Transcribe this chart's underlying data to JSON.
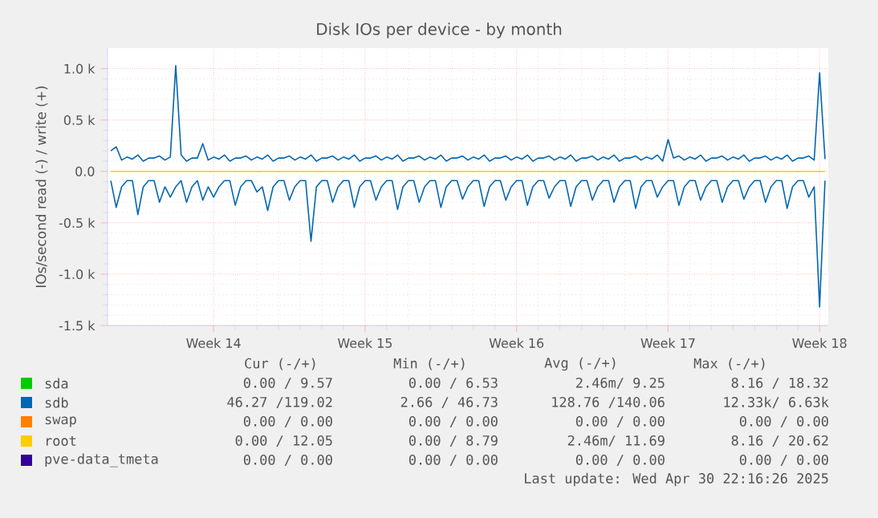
{
  "chart_data": {
    "type": "line",
    "title": "Disk IOs per device - by month",
    "ylabel": "IOs/second read (-) / write (+)",
    "categories": [
      null,
      null,
      null,
      null,
      null,
      null,
      null,
      null,
      null,
      null,
      null,
      null,
      null,
      null,
      null,
      null,
      null,
      null,
      null,
      "Week 14",
      null,
      null,
      null,
      null,
      null,
      null,
      null,
      null,
      null,
      null,
      null,
      null,
      null,
      null,
      null,
      null,
      null,
      null,
      null,
      null,
      null,
      null,
      null,
      null,
      null,
      null,
      null,
      "Week 15",
      null,
      null,
      null,
      null,
      null,
      null,
      null,
      null,
      null,
      null,
      null,
      null,
      null,
      null,
      null,
      null,
      null,
      null,
      null,
      null,
      null,
      null,
      null,
      null,
      null,
      null,
      null,
      "Week 16",
      null,
      null,
      null,
      null,
      null,
      null,
      null,
      null,
      null,
      null,
      null,
      null,
      null,
      null,
      null,
      null,
      null,
      null,
      null,
      null,
      null,
      null,
      null,
      null,
      null,
      null,
      null,
      "Week 17",
      null,
      null,
      null,
      null,
      null,
      null,
      null,
      null,
      null,
      null,
      null,
      null,
      null,
      null,
      null,
      null,
      null,
      null,
      null,
      null,
      null,
      null,
      null,
      null,
      null,
      null,
      null,
      "Week 18",
      null
    ],
    "ylim": [
      -1.5,
      1.2
    ],
    "yticks": [
      {
        "value": -1.5,
        "label": "-1.5 k"
      },
      {
        "value": -1.0,
        "label": "-1.0 k"
      },
      {
        "value": -0.5,
        "label": "-0.5 k"
      },
      {
        "value": 0.0,
        "label": "0.0"
      },
      {
        "value": 0.5,
        "label": "0.5 k"
      },
      {
        "value": 1.0,
        "label": "1.0 k"
      }
    ],
    "grid": true,
    "legend": "bottom",
    "series": [
      {
        "name": "sda",
        "color": "#00cc00",
        "values": [
          null,
          null,
          null,
          null,
          null,
          null,
          null,
          null,
          null,
          null,
          null,
          null,
          null,
          null,
          null,
          null,
          null,
          null,
          null,
          null,
          null,
          null,
          null,
          null,
          null,
          null,
          null,
          null,
          null,
          null,
          null,
          null,
          null,
          null,
          null,
          null,
          null,
          null,
          null,
          null,
          null,
          null,
          null,
          null,
          null,
          null,
          null,
          null,
          null,
          null,
          null,
          null,
          null,
          null,
          null,
          null,
          null,
          null,
          null,
          null,
          null,
          null,
          null,
          null,
          null,
          null,
          null,
          null,
          null,
          null,
          null,
          null,
          null,
          null,
          null,
          null,
          null,
          null,
          null,
          null,
          null,
          null,
          null,
          null,
          null,
          null,
          null,
          null,
          null,
          null,
          null,
          null,
          null,
          null,
          null,
          null,
          null,
          null,
          null,
          null,
          null,
          null,
          null,
          null,
          null,
          null,
          null,
          null,
          null,
          null,
          null,
          null,
          null,
          null,
          null,
          null,
          null,
          null,
          null,
          null,
          null,
          null,
          null,
          null,
          null,
          null,
          null,
          null,
          null,
          null,
          null,
          null,
          null
        ]
      },
      {
        "name": "sdb",
        "color": "#0066b3",
        "values": [
          0.2,
          0.24,
          0.11,
          0.14,
          0.12,
          0.16,
          0.1,
          0.13,
          0.13,
          0.15,
          0.11,
          0.14,
          1.03,
          0.16,
          0.1,
          0.13,
          0.13,
          0.27,
          0.11,
          0.14,
          0.12,
          0.16,
          0.1,
          0.13,
          0.13,
          0.15,
          0.11,
          0.14,
          0.12,
          0.16,
          0.1,
          0.13,
          0.13,
          0.15,
          0.11,
          0.14,
          0.12,
          0.16,
          0.1,
          0.13,
          0.13,
          0.15,
          0.11,
          0.14,
          0.12,
          0.16,
          0.1,
          0.13,
          0.13,
          0.15,
          0.11,
          0.14,
          0.12,
          0.16,
          0.1,
          0.13,
          0.13,
          0.15,
          0.11,
          0.14,
          0.12,
          0.16,
          0.1,
          0.13,
          0.13,
          0.15,
          0.11,
          0.14,
          0.12,
          0.16,
          0.1,
          0.13,
          0.13,
          0.15,
          0.11,
          0.14,
          0.12,
          0.16,
          0.1,
          0.13,
          0.13,
          0.15,
          0.11,
          0.14,
          0.12,
          0.16,
          0.1,
          0.13,
          0.13,
          0.15,
          0.11,
          0.14,
          0.12,
          0.16,
          0.1,
          0.13,
          0.13,
          0.15,
          0.11,
          0.14,
          0.12,
          0.16,
          0.1,
          0.31,
          0.13,
          0.15,
          0.11,
          0.14,
          0.12,
          0.16,
          0.1,
          0.13,
          0.13,
          0.15,
          0.11,
          0.14,
          0.12,
          0.16,
          0.1,
          0.13,
          0.13,
          0.15,
          0.11,
          0.14,
          0.12,
          0.16,
          0.1,
          0.13,
          0.13,
          0.15,
          0.11,
          0.96,
          0.12
        ]
      },
      {
        "color": "#0066b3",
        "values": [
          -0.09,
          -0.35,
          -0.15,
          -0.09,
          -0.09,
          -0.42,
          -0.15,
          -0.09,
          -0.09,
          -0.3,
          -0.15,
          -0.25,
          -0.15,
          -0.09,
          -0.3,
          -0.15,
          -0.09,
          -0.28,
          -0.15,
          -0.25,
          -0.15,
          -0.09,
          -0.09,
          -0.33,
          -0.15,
          -0.09,
          -0.09,
          -0.2,
          -0.15,
          -0.38,
          -0.15,
          -0.09,
          -0.09,
          -0.28,
          -0.15,
          -0.09,
          -0.09,
          -0.68,
          -0.15,
          -0.09,
          -0.09,
          -0.3,
          -0.15,
          -0.09,
          -0.09,
          -0.35,
          -0.15,
          -0.09,
          -0.09,
          -0.28,
          -0.15,
          -0.09,
          -0.09,
          -0.37,
          -0.15,
          -0.09,
          -0.09,
          -0.3,
          -0.15,
          -0.09,
          -0.09,
          -0.35,
          -0.15,
          -0.09,
          -0.09,
          -0.27,
          -0.15,
          -0.09,
          -0.09,
          -0.34,
          -0.15,
          -0.09,
          -0.09,
          -0.28,
          -0.15,
          -0.09,
          -0.09,
          -0.33,
          -0.15,
          -0.09,
          -0.09,
          -0.26,
          -0.15,
          -0.09,
          -0.09,
          -0.34,
          -0.15,
          -0.09,
          -0.09,
          -0.28,
          -0.15,
          -0.09,
          -0.09,
          -0.3,
          -0.15,
          -0.09,
          -0.09,
          -0.36,
          -0.15,
          -0.09,
          -0.09,
          -0.25,
          -0.15,
          -0.09,
          -0.09,
          -0.33,
          -0.15,
          -0.09,
          -0.09,
          -0.28,
          -0.15,
          -0.09,
          -0.09,
          -0.3,
          -0.15,
          -0.09,
          -0.09,
          -0.27,
          -0.15,
          -0.09,
          -0.09,
          -0.3,
          -0.15,
          -0.09,
          -0.09,
          -0.36,
          -0.15,
          -0.09,
          -0.09,
          -0.25,
          -0.15,
          -1.32,
          -0.09
        ]
      },
      {
        "name": "swap",
        "color": "#ff8000",
        "values": [
          null,
          null,
          null,
          null,
          null,
          null,
          null,
          null,
          null,
          null,
          null,
          null,
          null,
          null,
          null,
          null,
          null,
          null,
          null,
          null,
          null,
          null,
          null,
          null,
          null,
          null,
          null,
          null,
          null,
          null,
          null,
          null,
          null,
          null,
          null,
          null,
          null,
          null,
          null,
          null,
          null,
          null,
          null,
          null,
          null,
          null,
          null,
          null,
          null,
          null,
          null,
          null,
          null,
          null,
          null,
          null,
          null,
          null,
          null,
          null,
          null,
          null,
          null,
          null,
          null,
          null,
          null,
          null,
          null,
          null,
          null,
          null,
          null,
          null,
          null,
          null,
          null,
          null,
          null,
          null,
          null,
          null,
          null,
          null,
          null,
          null,
          null,
          null,
          null,
          null,
          null,
          null,
          null,
          null,
          null,
          null,
          null,
          null,
          null,
          null,
          null,
          null,
          null,
          null,
          null,
          null,
          null,
          null,
          null,
          null,
          null,
          null,
          null,
          null,
          null,
          null,
          null,
          null,
          null,
          null,
          null,
          null,
          null,
          null,
          null,
          null,
          null,
          null,
          null,
          null,
          null,
          null,
          null
        ]
      },
      {
        "name": "root",
        "color": "#ffcc00",
        "values": [
          0,
          0,
          0,
          0,
          0,
          0,
          0,
          0,
          0,
          0,
          0,
          0,
          0,
          0,
          0,
          0,
          0,
          0,
          0,
          0,
          0,
          0,
          0,
          0,
          0,
          0,
          0,
          0,
          0,
          0,
          0,
          0,
          0,
          0,
          0,
          0,
          0,
          0,
          0,
          0,
          0,
          0,
          0,
          0,
          0,
          0,
          0,
          0,
          0,
          0,
          0,
          0,
          0,
          0,
          0,
          0,
          0,
          0,
          0,
          0,
          0,
          0,
          0,
          0,
          0,
          0,
          0,
          0,
          0,
          0,
          0,
          0,
          0,
          0,
          0,
          0,
          0,
          0,
          0,
          0,
          0,
          0,
          0,
          0,
          0,
          0,
          0,
          0,
          0,
          0,
          0,
          0,
          0,
          0,
          0,
          0,
          0,
          0,
          0,
          0,
          0,
          0,
          0,
          0,
          0,
          0,
          0,
          0,
          0,
          0,
          0,
          0,
          0,
          0,
          0,
          0,
          0,
          0,
          0,
          0,
          0,
          0,
          0,
          0,
          0,
          0,
          0,
          0,
          0,
          0,
          0,
          0,
          0
        ]
      },
      {
        "name": "pve-data_tmeta",
        "color": "#330099",
        "values": [
          null,
          null,
          null,
          null,
          null,
          null,
          null,
          null,
          null,
          null,
          null,
          null,
          null,
          null,
          null,
          null,
          null,
          null,
          null,
          null,
          null,
          null,
          null,
          null,
          null,
          null,
          null,
          null,
          null,
          null,
          null,
          null,
          null,
          null,
          null,
          null,
          null,
          null,
          null,
          null,
          null,
          null,
          null,
          null,
          null,
          null,
          null,
          null,
          null,
          null,
          null,
          null,
          null,
          null,
          null,
          null,
          null,
          null,
          null,
          null,
          null,
          null,
          null,
          null,
          null,
          null,
          null,
          null,
          null,
          null,
          null,
          null,
          null,
          null,
          null,
          null,
          null,
          null,
          null,
          null,
          null,
          null,
          null,
          null,
          null,
          null,
          null,
          null,
          null,
          null,
          null,
          null,
          null,
          null,
          null,
          null,
          null,
          null,
          null,
          null,
          null,
          null,
          null,
          null,
          null,
          null,
          null,
          null,
          null,
          null,
          null,
          null,
          null,
          null,
          null,
          null,
          null,
          null,
          null,
          null,
          null,
          null,
          null,
          null,
          null,
          null,
          null,
          null,
          null,
          null,
          null,
          null,
          null
        ]
      }
    ],
    "annotations": [
      "Cur (-/+)",
      "Min (-/+)",
      "Avg (-/+)",
      "Max (-/+)",
      "0.00 / 9.57",
      "0.00 / 6.53",
      "2.46m/ 9.25",
      "8.16 / 18.32",
      "46.27 /119.02",
      "2.66 / 46.73",
      "128.76 /140.06",
      "12.33k/ 6.63k",
      "0.00 / 0.00",
      "0.00 / 0.00",
      "0.00 / 0.00",
      "0.00 / 0.00",
      "0.00 / 12.05",
      "0.00 / 8.79",
      "2.46m/ 11.69",
      "8.16 / 20.62",
      "0.00 / 0.00",
      "0.00 / 0.00",
      "0.00 / 0.00",
      "0.00 / 0.00",
      "Last update: Wed Apr 30 22:16:26 2025"
    ]
  }
}
